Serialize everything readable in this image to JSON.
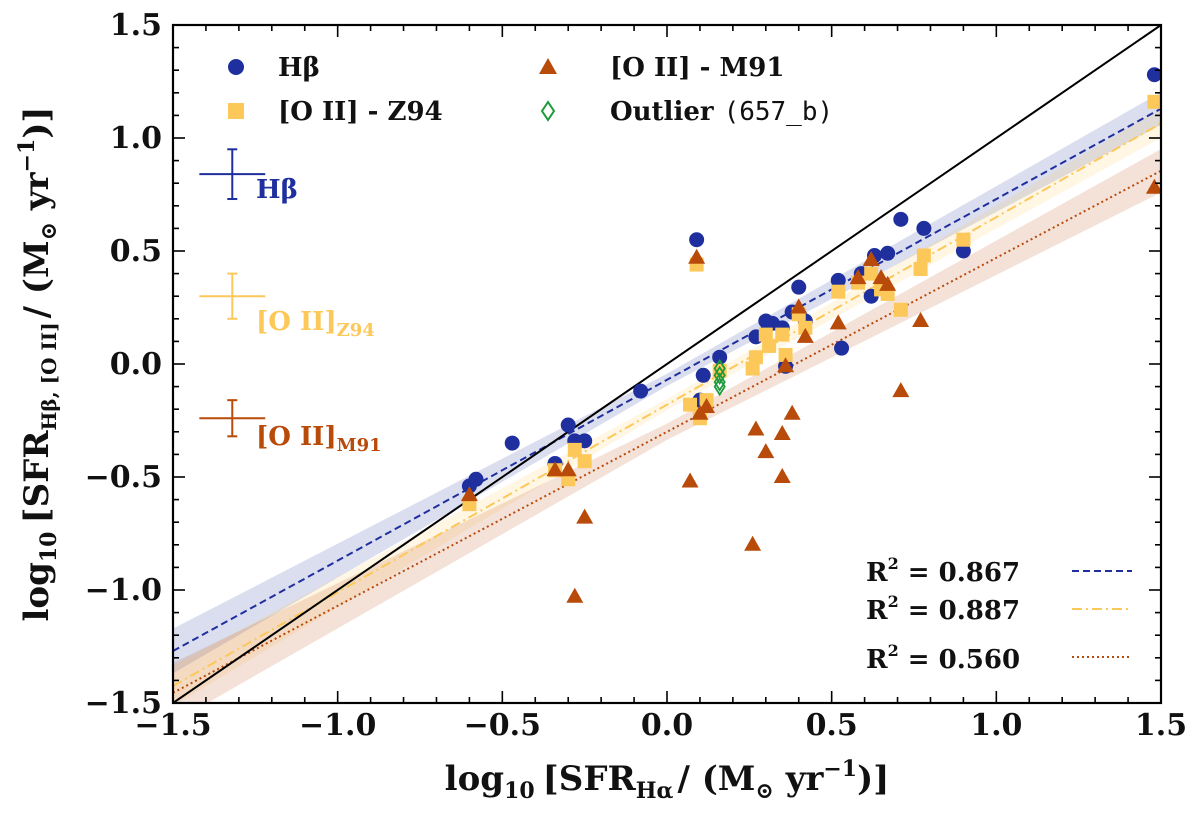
{
  "chart_data": {
    "type": "scatter",
    "xlim": [
      -1.5,
      1.5
    ],
    "ylim": [
      -1.5,
      1.5
    ],
    "x_ticks": [
      -1.5,
      -1.0,
      -0.5,
      0.0,
      0.5,
      1.0,
      1.5
    ],
    "y_ticks": [
      -1.5,
      -1.0,
      -0.5,
      0.0,
      0.5,
      1.0,
      1.5
    ],
    "tick_labels": [
      "−1.5",
      "−1.0",
      "−0.5",
      "0.0",
      "0.5",
      "1.0",
      "1.5"
    ],
    "xlabel": "log₁₀ [SFR_Hα / (M⊙ yr⁻¹)]",
    "xlabel_parts": {
      "main": "log",
      "sub": "10",
      "sfr": "[SFR",
      "sfr_sub": "Hα",
      "unit": "/ (M",
      "unit_sub": "⊙",
      "tail": " yr",
      "tail_sup": "−1",
      "close": ")]"
    },
    "ylabel": "log₁₀ [SFR_Hβ,[O II] / (M⊙ yr⁻¹)]",
    "ylabel_parts": {
      "main": "log",
      "sub": "10",
      "sfr": "[SFR",
      "sfr_sub": "Hβ, [O II]",
      "unit": "/ (M",
      "unit_sub": "⊙",
      "tail": " yr",
      "tail_sup": "−1",
      "close": ")]"
    },
    "one_to_one_line": true,
    "colors": {
      "hb": "#1f2f9e",
      "oii_z94": "#fdc85a",
      "oii_m91": "#b84a0a",
      "outlier": "#1e9a3a",
      "identity": "#000000"
    },
    "legend": [
      {
        "label": "Hβ",
        "marker": "circle",
        "color": "#1f2f9e"
      },
      {
        "label": "[O II] - Z94",
        "marker": "square",
        "color": "#fdc85a"
      },
      {
        "label": "[O II] - M91",
        "marker": "triangle",
        "color": "#b84a0a"
      },
      {
        "label": "Outlier (657_b)",
        "label_main": "Outlier",
        "label_id": "(657_b)",
        "marker": "diamond",
        "color": "#1e9a3a"
      }
    ],
    "error_labels": [
      {
        "text": "Hβ",
        "color": "#1f2f9e"
      },
      {
        "text": "[O II]",
        "sub": "Z94",
        "color": "#fdc85a"
      },
      {
        "text": "[O II]",
        "sub": "M91",
        "color": "#b84a0a"
      }
    ],
    "error_bars": [
      {
        "series": "Hβ",
        "x": -1.32,
        "y": 0.84,
        "xerr": 0.1,
        "yerr": 0.11
      },
      {
        "series": "[O II] - Z94",
        "x": -1.32,
        "y": 0.3,
        "xerr": 0.1,
        "yerr": 0.1
      },
      {
        "series": "[O II] - M91",
        "x": -1.32,
        "y": -0.24,
        "xerr": 0.1,
        "yerr": 0.08
      }
    ],
    "fits": [
      {
        "label": "R² = 0.867",
        "r2": "0.867",
        "slope": 0.8,
        "intercept": -0.07,
        "band": 0.045,
        "style": "dashed",
        "color": "#1f2f9e"
      },
      {
        "label": "R² = 0.887",
        "r2": "0.887",
        "slope": 0.83,
        "intercept": -0.18,
        "band": 0.04,
        "style": "dashdot",
        "color": "#fdc85a"
      },
      {
        "label": "R² = 0.560",
        "r2": "0.560",
        "slope": 0.77,
        "intercept": -0.3,
        "band": 0.06,
        "style": "dotted",
        "color": "#b84a0a"
      }
    ],
    "series": [
      {
        "name": "Hβ",
        "marker": "circle",
        "color": "#1f2f9e",
        "points": [
          [
            -0.6,
            -0.54
          ],
          [
            -0.58,
            -0.51
          ],
          [
            -0.47,
            -0.35
          ],
          [
            -0.34,
            -0.44
          ],
          [
            -0.3,
            -0.27
          ],
          [
            -0.28,
            -0.34
          ],
          [
            -0.25,
            -0.34
          ],
          [
            -0.08,
            -0.12
          ],
          [
            0.09,
            0.55
          ],
          [
            0.1,
            -0.16
          ],
          [
            0.11,
            -0.05
          ],
          [
            0.16,
            0.03
          ],
          [
            0.27,
            0.12
          ],
          [
            0.3,
            0.19
          ],
          [
            0.32,
            0.18
          ],
          [
            0.35,
            0.16
          ],
          [
            0.36,
            -0.01
          ],
          [
            0.38,
            0.23
          ],
          [
            0.4,
            0.34
          ],
          [
            0.42,
            0.19
          ],
          [
            0.52,
            0.37
          ],
          [
            0.53,
            0.07
          ],
          [
            0.59,
            0.4
          ],
          [
            0.62,
            0.3
          ],
          [
            0.63,
            0.48
          ],
          [
            0.67,
            0.49
          ],
          [
            0.71,
            0.64
          ],
          [
            0.78,
            0.6
          ],
          [
            0.9,
            0.5
          ],
          [
            1.48,
            1.28
          ]
        ]
      },
      {
        "name": "[O II] - Z94",
        "marker": "square",
        "color": "#fdc85a",
        "points": [
          [
            -0.6,
            -0.62
          ],
          [
            -0.34,
            -0.47
          ],
          [
            -0.3,
            -0.51
          ],
          [
            -0.28,
            -0.38
          ],
          [
            -0.25,
            -0.43
          ],
          [
            0.07,
            -0.18
          ],
          [
            0.09,
            0.44
          ],
          [
            0.1,
            -0.24
          ],
          [
            0.12,
            -0.16
          ],
          [
            0.16,
            -0.03
          ],
          [
            0.26,
            -0.02
          ],
          [
            0.27,
            0.03
          ],
          [
            0.3,
            0.13
          ],
          [
            0.31,
            0.08
          ],
          [
            0.35,
            0.13
          ],
          [
            0.36,
            0.04
          ],
          [
            0.4,
            0.22
          ],
          [
            0.42,
            0.16
          ],
          [
            0.52,
            0.32
          ],
          [
            0.58,
            0.36
          ],
          [
            0.62,
            0.4
          ],
          [
            0.65,
            0.33
          ],
          [
            0.67,
            0.31
          ],
          [
            0.71,
            0.24
          ],
          [
            0.77,
            0.42
          ],
          [
            0.78,
            0.48
          ],
          [
            0.9,
            0.55
          ],
          [
            1.48,
            1.16
          ]
        ]
      },
      {
        "name": "[O II] - M91",
        "marker": "triangle",
        "color": "#b84a0a",
        "points": [
          [
            -0.6,
            -0.58
          ],
          [
            -0.34,
            -0.47
          ],
          [
            -0.3,
            -0.47
          ],
          [
            -0.28,
            -1.03
          ],
          [
            -0.25,
            -0.68
          ],
          [
            0.07,
            -0.52
          ],
          [
            0.09,
            0.47
          ],
          [
            0.1,
            -0.22
          ],
          [
            0.12,
            -0.19
          ],
          [
            0.26,
            -0.8
          ],
          [
            0.27,
            -0.29
          ],
          [
            0.3,
            -0.39
          ],
          [
            0.35,
            -0.31
          ],
          [
            0.35,
            -0.5
          ],
          [
            0.36,
            -0.01
          ],
          [
            0.38,
            -0.22
          ],
          [
            0.4,
            0.25
          ],
          [
            0.42,
            0.12
          ],
          [
            0.52,
            0.18
          ],
          [
            0.58,
            0.38
          ],
          [
            0.62,
            0.46
          ],
          [
            0.65,
            0.38
          ],
          [
            0.67,
            0.35
          ],
          [
            0.71,
            -0.12
          ],
          [
            0.77,
            0.19
          ],
          [
            1.48,
            0.78
          ]
        ]
      },
      {
        "name": "Outlier (657_b)",
        "marker": "diamond",
        "color": "#1e9a3a",
        "points": [
          [
            0.16,
            -0.02
          ],
          [
            0.16,
            -0.05
          ],
          [
            0.16,
            -0.08
          ],
          [
            0.16,
            -0.1
          ]
        ]
      }
    ]
  }
}
